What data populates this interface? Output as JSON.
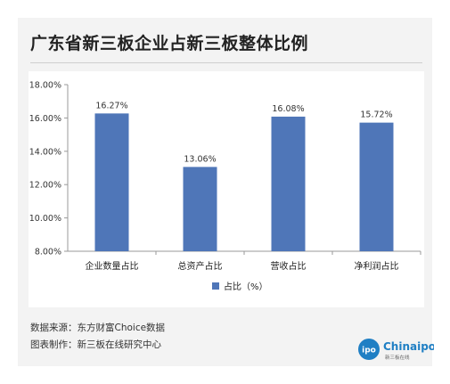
{
  "title": "广东省新三板企业占新三板整体比例",
  "chart_data": {
    "type": "bar",
    "categories": [
      "企业数量占比",
      "总资产占比",
      "营收占比",
      "净利润占比"
    ],
    "series": [
      {
        "name": "占比（%）",
        "values": [
          16.27,
          13.06,
          16.08,
          15.72
        ]
      }
    ],
    "data_labels": [
      "16.27%",
      "13.06%",
      "16.08%",
      "15.72%"
    ],
    "ylim": [
      8,
      18
    ],
    "yticks": [
      8,
      10,
      12,
      14,
      16,
      18
    ],
    "ytick_labels": [
      "8.00%",
      "10.00%",
      "12.00%",
      "14.00%",
      "16.00%",
      "18.00%"
    ],
    "legend_position": "bottom-left",
    "bar_color": "#4f76b8",
    "grid": false
  },
  "source": {
    "data_source": "数据来源：东方财富Choice数据",
    "made_by": "图表制作：新三板在线研究中心"
  },
  "logo": {
    "text": "Chinaipo",
    "subtext": "新三板在线",
    "icon_text": "ipo",
    "color": "#1f7fc4"
  }
}
